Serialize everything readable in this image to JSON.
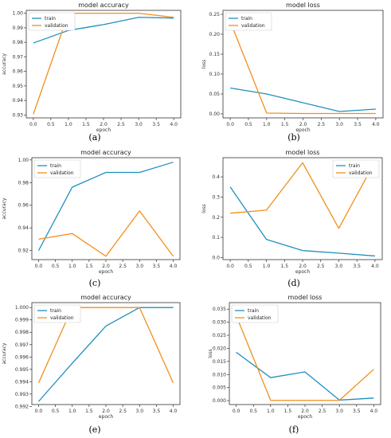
{
  "colors": {
    "train": "#1f8fbf",
    "validation": "#f28e1c"
  },
  "chart_data": [
    {
      "type": "line",
      "title": "model accuracy",
      "xlabel": "epoch",
      "ylabel": "accuracy",
      "caption": "(a)",
      "x": [
        0,
        1,
        2,
        3,
        4
      ],
      "xticks": [
        "0.0",
        "0.5",
        "1.0",
        "1.5",
        "2.0",
        "2.5",
        "3.0",
        "3.5",
        "4.0"
      ],
      "ylim": [
        0.928,
        1.002
      ],
      "yticks": [
        "0.93",
        "0.94",
        "0.95",
        "0.96",
        "0.97",
        "0.98",
        "0.99",
        "1.00"
      ],
      "legend": "upper-left",
      "series": [
        {
          "name": "train",
          "values": [
            0.9795,
            0.9882,
            0.9922,
            0.9972,
            0.9967
          ]
        },
        {
          "name": "validation",
          "values": [
            0.9305,
            1.0,
            1.0,
            1.0,
            0.9972
          ]
        }
      ]
    },
    {
      "type": "line",
      "title": "model loss",
      "xlabel": "epoch",
      "ylabel": "loss",
      "caption": "(b)",
      "x": [
        0,
        1,
        2,
        3,
        4
      ],
      "xticks": [
        "0.0",
        "0.5",
        "1.0",
        "1.5",
        "2.0",
        "2.5",
        "3.0",
        "3.5",
        "4.0"
      ],
      "ylim": [
        -0.01,
        0.26
      ],
      "yticks": [
        "0.00",
        "0.05",
        "0.10",
        "0.15",
        "0.20",
        "0.25"
      ],
      "legend": "upper-left",
      "series": [
        {
          "name": "train",
          "values": [
            0.065,
            0.05,
            0.028,
            0.006,
            0.012
          ]
        },
        {
          "name": "validation",
          "values": [
            0.232,
            0.002,
            0.001,
            0.001,
            0.001
          ]
        }
      ]
    },
    {
      "type": "line",
      "title": "model accuracy",
      "xlabel": "epoch",
      "ylabel": "accuracy",
      "caption": "(c)",
      "x": [
        0,
        1,
        2,
        3,
        4
      ],
      "xticks": [
        "0.0",
        "0.5",
        "1.0",
        "1.5",
        "2.0",
        "2.5",
        "3.0",
        "3.5",
        "4.0"
      ],
      "ylim": [
        0.912,
        1.002
      ],
      "yticks": [
        "0.92",
        "0.94",
        "0.96",
        "0.98",
        "1.00"
      ],
      "legend": "upper-left",
      "series": [
        {
          "name": "train",
          "values": [
            0.92,
            0.976,
            0.989,
            0.989,
            0.998
          ]
        },
        {
          "name": "validation",
          "values": [
            0.93,
            0.935,
            0.915,
            0.955,
            0.915
          ]
        }
      ]
    },
    {
      "type": "line",
      "title": "model loss",
      "xlabel": "epoch",
      "ylabel": "loss",
      "caption": "(d)",
      "x": [
        0,
        1,
        2,
        3,
        4
      ],
      "xticks": [
        "0.0",
        "0.5",
        "1.0",
        "1.5",
        "2.0",
        "2.5",
        "3.0",
        "3.5",
        "4.0"
      ],
      "ylim": [
        -0.01,
        0.495
      ],
      "yticks": [
        "0.0",
        "0.1",
        "0.2",
        "0.3",
        "0.4"
      ],
      "legend": "upper-right",
      "series": [
        {
          "name": "train",
          "values": [
            0.35,
            0.09,
            0.035,
            0.022,
            0.008
          ]
        },
        {
          "name": "validation",
          "values": [
            0.22,
            0.235,
            0.47,
            0.145,
            0.475
          ]
        }
      ]
    },
    {
      "type": "line",
      "title": "model accuracy",
      "xlabel": "epoch",
      "ylabel": "accuracy",
      "caption": "(e)",
      "x": [
        0,
        1,
        2,
        3,
        4
      ],
      "xticks": [
        "0.0",
        "0.5",
        "1.0",
        "1.5",
        "2.0",
        "2.5",
        "3.0",
        "3.5",
        "4.0"
      ],
      "ylim": [
        0.99215,
        1.0004
      ],
      "yticks": [
        "0.992",
        "0.993",
        "0.994",
        "0.995",
        "0.996",
        "0.997",
        "0.998",
        "0.999",
        "1.000"
      ],
      "legend": "upper-left",
      "series": [
        {
          "name": "train",
          "values": [
            0.9924,
            0.9955,
            0.9985,
            1.0,
            1.0
          ]
        },
        {
          "name": "validation",
          "values": [
            0.9939,
            1.0,
            1.0,
            1.0,
            0.9939
          ]
        }
      ]
    },
    {
      "type": "line",
      "title": "model loss",
      "xlabel": "epoch",
      "ylabel": "loss",
      "caption": "(f)",
      "x": [
        0,
        1,
        2,
        3,
        4
      ],
      "xticks": [
        "0.0",
        "0.5",
        "1.0",
        "1.5",
        "2.0",
        "2.5",
        "3.0",
        "3.5",
        "4.0"
      ],
      "ylim": [
        -0.0015,
        0.0375
      ],
      "yticks": [
        "0.000",
        "0.005",
        "0.010",
        "0.015",
        "0.020",
        "0.025",
        "0.030",
        "0.035"
      ],
      "legend": "upper-left",
      "series": [
        {
          "name": "train",
          "values": [
            0.0185,
            0.0088,
            0.011,
            0.0002,
            0.001
          ]
        },
        {
          "name": "validation",
          "values": [
            0.0325,
            0.0001,
            0.0001,
            0.0001,
            0.012
          ]
        }
      ]
    }
  ]
}
